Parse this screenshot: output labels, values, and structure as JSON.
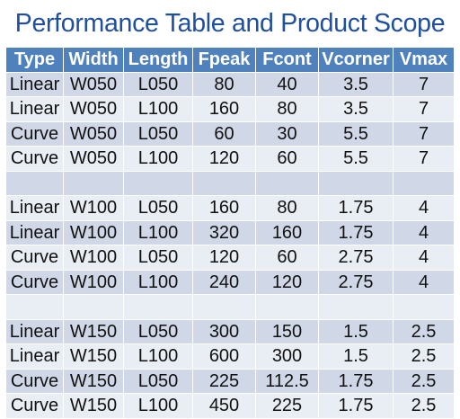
{
  "title": "Performance Table and Product Scope",
  "table": {
    "headers": [
      "Type",
      "Width",
      "Length",
      "Fpeak",
      "Fcont",
      "Vcorner",
      "Vmax"
    ],
    "rows": [
      [
        "Linear",
        "W050",
        "L050",
        "80",
        "40",
        "3.5",
        "7"
      ],
      [
        "Linear",
        "W050",
        "L100",
        "160",
        "80",
        "3.5",
        "7"
      ],
      [
        "Curve",
        "W050",
        "L050",
        "60",
        "30",
        "5.5",
        "7"
      ],
      [
        "Curve",
        "W050",
        "L100",
        "120",
        "60",
        "5.5",
        "7"
      ],
      [
        "",
        "",
        "",
        "",
        "",
        "",
        ""
      ],
      [
        "Linear",
        "W100",
        "L050",
        "160",
        "80",
        "1.75",
        "4"
      ],
      [
        "Linear",
        "W100",
        "L100",
        "320",
        "160",
        "1.75",
        "4"
      ],
      [
        "Curve",
        "W100",
        "L050",
        "120",
        "60",
        "2.75",
        "4"
      ],
      [
        "Curve",
        "W100",
        "L100",
        "240",
        "120",
        "2.75",
        "4"
      ],
      [
        "",
        "",
        "",
        "",
        "",
        "",
        ""
      ],
      [
        "Linear",
        "W150",
        "L050",
        "300",
        "150",
        "1.5",
        "2.5"
      ],
      [
        "Linear",
        "W150",
        "L100",
        "600",
        "300",
        "1.5",
        "2.5"
      ],
      [
        "Curve",
        "W150",
        "L050",
        "225",
        "112.5",
        "1.75",
        "2.5"
      ],
      [
        "Curve",
        "W150",
        "L100",
        "450",
        "225",
        "1.75",
        "2.5"
      ]
    ]
  },
  "colors": {
    "title": "#1f4fa0",
    "header_bg": "#4f81bd",
    "row_dark": "#d0d8e8",
    "row_light": "#e9edf4"
  }
}
